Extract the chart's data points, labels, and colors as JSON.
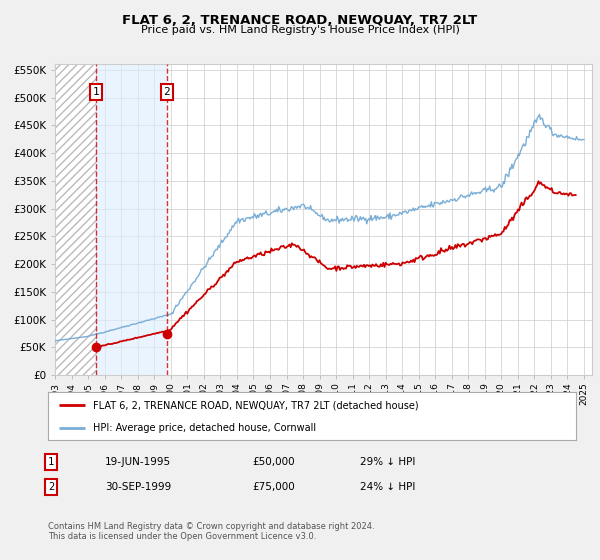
{
  "title": "FLAT 6, 2, TRENANCE ROAD, NEWQUAY, TR7 2LT",
  "subtitle": "Price paid vs. HM Land Registry's House Price Index (HPI)",
  "legend_line1": "FLAT 6, 2, TRENANCE ROAD, NEWQUAY, TR7 2LT (detached house)",
  "legend_line2": "HPI: Average price, detached house, Cornwall",
  "transaction1_date": "19-JUN-1995",
  "transaction1_price": "£50,000",
  "transaction1_hpi": "29% ↓ HPI",
  "transaction2_date": "30-SEP-1999",
  "transaction2_price": "£75,000",
  "transaction2_hpi": "24% ↓ HPI",
  "footnote": "Contains HM Land Registry data © Crown copyright and database right 2024.\nThis data is licensed under the Open Government Licence v3.0.",
  "price_color": "#cc0000",
  "hpi_color": "#7aaed6",
  "shading_color": "#ddeeff",
  "marker1_date": 1995.46,
  "marker1_price": 50000,
  "marker2_date": 1999.75,
  "marker2_price": 75000,
  "vline1_date": 1995.46,
  "vline2_date": 1999.75,
  "xlim_left": 1993.0,
  "xlim_right": 2025.5,
  "ylim_bottom": 0,
  "ylim_top": 560000,
  "yticks": [
    0,
    50000,
    100000,
    150000,
    200000,
    250000,
    300000,
    350000,
    400000,
    450000,
    500000,
    550000
  ],
  "ytick_labels": [
    "£0",
    "£50K",
    "£100K",
    "£150K",
    "£200K",
    "£250K",
    "£300K",
    "£350K",
    "£400K",
    "£450K",
    "£500K",
    "£550K"
  ],
  "xticks": [
    1993,
    1994,
    1995,
    1996,
    1997,
    1998,
    1999,
    2000,
    2001,
    2002,
    2003,
    2004,
    2005,
    2006,
    2007,
    2008,
    2009,
    2010,
    2011,
    2012,
    2013,
    2014,
    2015,
    2016,
    2017,
    2018,
    2019,
    2020,
    2021,
    2022,
    2023,
    2024,
    2025
  ],
  "background_color": "#f0f0f0",
  "plot_bg_color": "#ffffff"
}
